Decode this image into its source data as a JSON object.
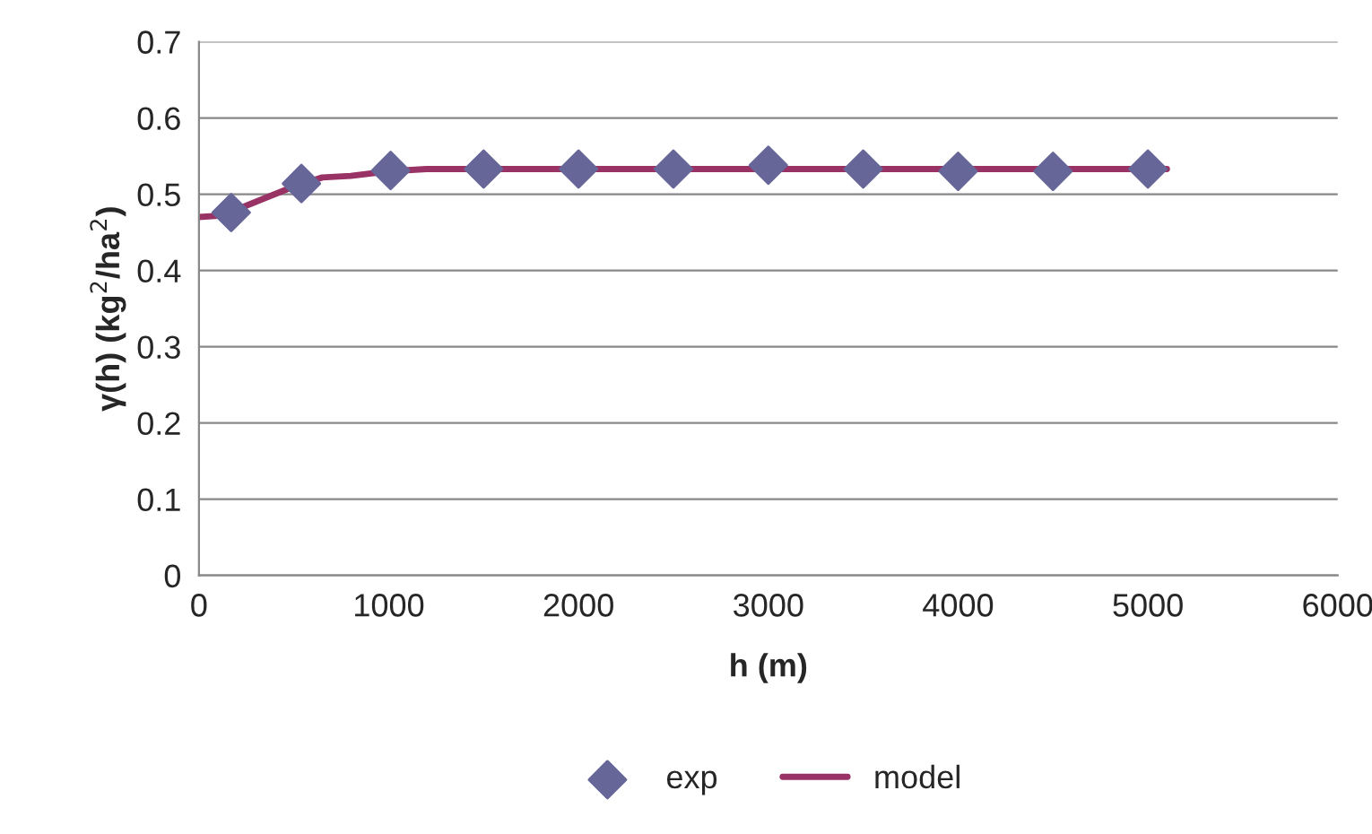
{
  "chart_data": {
    "type": "scatter",
    "xlabel": "h (m)",
    "ylabel": "γ(h) (kg$^{2}$/ha$^{2}$)",
    "xlim": [
      0,
      6000
    ],
    "xticks": [
      0,
      1000,
      2000,
      3000,
      4000,
      5000,
      6000
    ],
    "ylim": [
      0,
      0.7
    ],
    "yticks": [
      0,
      0.1,
      0.2,
      0.3,
      0.4,
      0.5,
      0.6,
      0.7
    ],
    "grid": "y",
    "legend": "bottom",
    "series": [
      {
        "name": "exp",
        "marker": "diamond",
        "color": "#666699",
        "x": [
          170,
          540,
          1010,
          1500,
          2000,
          2500,
          3000,
          3500,
          4000,
          4500,
          5000
        ],
        "values": [
          0.476,
          0.514,
          0.531,
          0.533,
          0.533,
          0.533,
          0.538,
          0.533,
          0.53,
          0.53,
          0.533
        ]
      },
      {
        "name": "model",
        "type": "line",
        "color": "#993366",
        "x": [
          0,
          120,
          300,
          500,
          650,
          800,
          1000,
          1200,
          5100
        ],
        "values": [
          0.47,
          0.472,
          0.49,
          0.51,
          0.522,
          0.524,
          0.53,
          0.533,
          0.533
        ]
      }
    ]
  }
}
